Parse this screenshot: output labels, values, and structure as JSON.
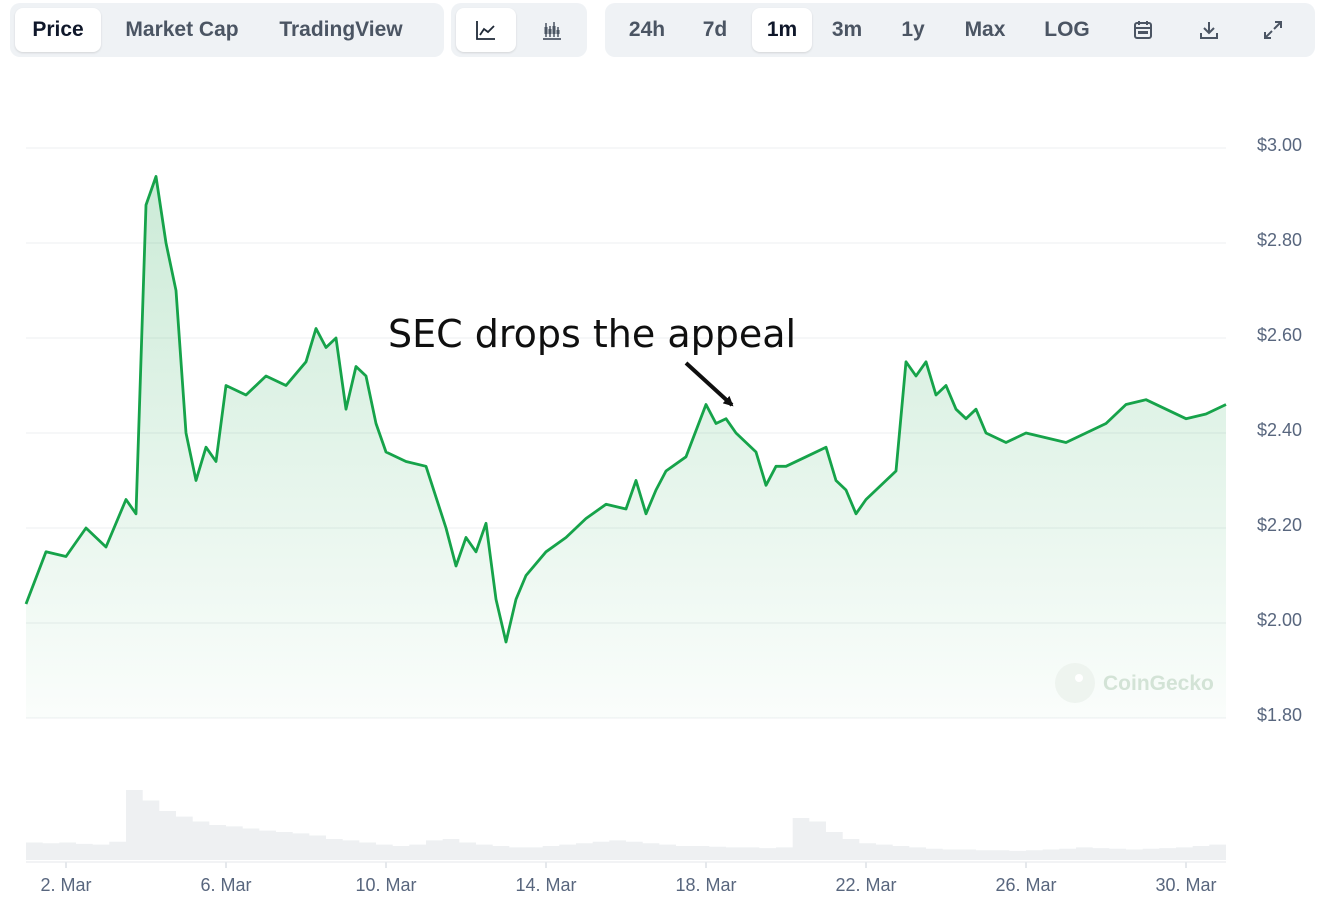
{
  "toolbar": {
    "type_tabs": [
      {
        "label": "Price",
        "active": true
      },
      {
        "label": "Market Cap",
        "active": false
      },
      {
        "label": "TradingView",
        "active": false
      }
    ],
    "chart_kind_buttons": [
      {
        "icon": "line-chart-icon",
        "active": true
      },
      {
        "icon": "candlestick-chart-icon",
        "active": false
      }
    ],
    "ranges": [
      {
        "label": "24h",
        "active": false
      },
      {
        "label": "7d",
        "active": false
      },
      {
        "label": "1m",
        "active": true
      },
      {
        "label": "3m",
        "active": false
      },
      {
        "label": "1y",
        "active": false
      },
      {
        "label": "Max",
        "active": false
      },
      {
        "label": "LOG",
        "active": false
      }
    ],
    "tool_icons": [
      "calendar-icon",
      "download-icon",
      "expand-icon"
    ]
  },
  "watermark": {
    "text": "CoinGecko",
    "icon": "coingecko-logo-icon"
  },
  "annotation": {
    "text": "SEC drops the appeal",
    "points_to_date": "2025-03-19"
  },
  "chart_data": {
    "type": "area",
    "series": [
      {
        "values": []
      }
    ],
    "x_tick_labels": [
      "2. Mar",
      "6. Mar",
      "10. Mar",
      "14. Mar",
      "18. Mar",
      "22. Mar",
      "26. Mar",
      "30. Mar"
    ],
    "y_tick_labels": [
      "$1.80",
      "$2.00",
      "$2.20",
      "$2.40",
      "$2.60",
      "$2.80",
      "$3.00"
    ],
    "y_ticks": [
      1.8,
      2.0,
      2.2,
      2.4,
      2.6,
      2.8,
      3.0
    ],
    "ylim": [
      1.8,
      3.0
    ],
    "x_range": [
      "2025-03-01",
      "2025-03-31"
    ],
    "grid": true,
    "price_points": [
      [
        "2025-03-01",
        2.04
      ],
      [
        "2025-03-01 12:00",
        2.15
      ],
      [
        "2025-03-02",
        2.14
      ],
      [
        "2025-03-02 12:00",
        2.2
      ],
      [
        "2025-03-03",
        2.16
      ],
      [
        "2025-03-03 12:00",
        2.26
      ],
      [
        "2025-03-03 18:00",
        2.23
      ],
      [
        "2025-03-04",
        2.88
      ],
      [
        "2025-03-04 06:00",
        2.94
      ],
      [
        "2025-03-04 12:00",
        2.8
      ],
      [
        "2025-03-04 18:00",
        2.7
      ],
      [
        "2025-03-05",
        2.4
      ],
      [
        "2025-03-05 06:00",
        2.3
      ],
      [
        "2025-03-05 12:00",
        2.37
      ],
      [
        "2025-03-05 18:00",
        2.34
      ],
      [
        "2025-03-06",
        2.5
      ],
      [
        "2025-03-06 12:00",
        2.48
      ],
      [
        "2025-03-07",
        2.52
      ],
      [
        "2025-03-07 12:00",
        2.5
      ],
      [
        "2025-03-08",
        2.55
      ],
      [
        "2025-03-08 06:00",
        2.62
      ],
      [
        "2025-03-08 12:00",
        2.58
      ],
      [
        "2025-03-08 18:00",
        2.6
      ],
      [
        "2025-03-09",
        2.45
      ],
      [
        "2025-03-09 06:00",
        2.54
      ],
      [
        "2025-03-09 12:00",
        2.52
      ],
      [
        "2025-03-09 18:00",
        2.42
      ],
      [
        "2025-03-10",
        2.36
      ],
      [
        "2025-03-10 12:00",
        2.34
      ],
      [
        "2025-03-11",
        2.33
      ],
      [
        "2025-03-11 12:00",
        2.2
      ],
      [
        "2025-03-11 18:00",
        2.12
      ],
      [
        "2025-03-12",
        2.18
      ],
      [
        "2025-03-12 06:00",
        2.15
      ],
      [
        "2025-03-12 12:00",
        2.21
      ],
      [
        "2025-03-12 18:00",
        2.05
      ],
      [
        "2025-03-13",
        1.96
      ],
      [
        "2025-03-13 06:00",
        2.05
      ],
      [
        "2025-03-13 12:00",
        2.1
      ],
      [
        "2025-03-14",
        2.15
      ],
      [
        "2025-03-14 12:00",
        2.18
      ],
      [
        "2025-03-15",
        2.22
      ],
      [
        "2025-03-15 12:00",
        2.25
      ],
      [
        "2025-03-16",
        2.24
      ],
      [
        "2025-03-16 06:00",
        2.3
      ],
      [
        "2025-03-16 12:00",
        2.23
      ],
      [
        "2025-03-16 18:00",
        2.28
      ],
      [
        "2025-03-17",
        2.32
      ],
      [
        "2025-03-17 12:00",
        2.35
      ],
      [
        "2025-03-18",
        2.46
      ],
      [
        "2025-03-18 06:00",
        2.42
      ],
      [
        "2025-03-18 12:00",
        2.43
      ],
      [
        "2025-03-18 18:00",
        2.4
      ],
      [
        "2025-03-19",
        2.38
      ],
      [
        "2025-03-19 06:00",
        2.36
      ],
      [
        "2025-03-19 12:00",
        2.29
      ],
      [
        "2025-03-19 18:00",
        2.33
      ],
      [
        "2025-03-20",
        2.33
      ],
      [
        "2025-03-20 12:00",
        2.35
      ],
      [
        "2025-03-21",
        2.37
      ],
      [
        "2025-03-21 06:00",
        2.3
      ],
      [
        "2025-03-21 12:00",
        2.28
      ],
      [
        "2025-03-21 18:00",
        2.23
      ],
      [
        "2025-03-22",
        2.26
      ],
      [
        "2025-03-22 12:00",
        2.3
      ],
      [
        "2025-03-22 18:00",
        2.32
      ],
      [
        "2025-03-23",
        2.55
      ],
      [
        "2025-03-23 06:00",
        2.52
      ],
      [
        "2025-03-23 12:00",
        2.55
      ],
      [
        "2025-03-23 18:00",
        2.48
      ],
      [
        "2025-03-24",
        2.5
      ],
      [
        "2025-03-24 06:00",
        2.45
      ],
      [
        "2025-03-24 12:00",
        2.43
      ],
      [
        "2025-03-24 18:00",
        2.45
      ],
      [
        "2025-03-25",
        2.4
      ],
      [
        "2025-03-25 12:00",
        2.38
      ],
      [
        "2025-03-26",
        2.4
      ],
      [
        "2025-03-26 12:00",
        2.39
      ],
      [
        "2025-03-27",
        2.38
      ],
      [
        "2025-03-27 12:00",
        2.4
      ],
      [
        "2025-03-28",
        2.42
      ],
      [
        "2025-03-28 12:00",
        2.46
      ],
      [
        "2025-03-29",
        2.47
      ],
      [
        "2025-03-29 12:00",
        2.45
      ],
      [
        "2025-03-30",
        2.43
      ],
      [
        "2025-03-30 12:00",
        2.44
      ],
      [
        "2025-03-31",
        2.46
      ]
    ],
    "volume_relative": [
      0.25,
      0.24,
      0.25,
      0.23,
      0.22,
      0.26,
      1.0,
      0.85,
      0.7,
      0.62,
      0.55,
      0.5,
      0.48,
      0.45,
      0.42,
      0.4,
      0.38,
      0.35,
      0.3,
      0.28,
      0.25,
      0.22,
      0.2,
      0.22,
      0.28,
      0.3,
      0.25,
      0.22,
      0.2,
      0.18,
      0.18,
      0.2,
      0.22,
      0.24,
      0.26,
      0.28,
      0.26,
      0.24,
      0.22,
      0.2,
      0.2,
      0.19,
      0.18,
      0.18,
      0.17,
      0.18,
      0.6,
      0.55,
      0.4,
      0.3,
      0.24,
      0.22,
      0.2,
      0.18,
      0.16,
      0.15,
      0.15,
      0.14,
      0.14,
      0.13,
      0.14,
      0.15,
      0.16,
      0.18,
      0.17,
      0.16,
      0.15,
      0.16,
      0.17,
      0.18,
      0.2,
      0.22
    ]
  }
}
